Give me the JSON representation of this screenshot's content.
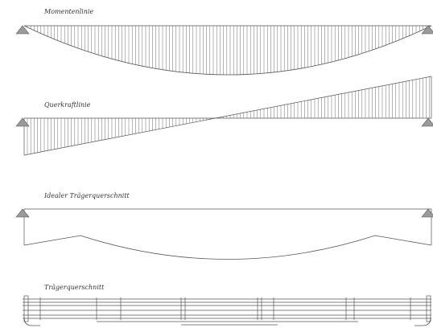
{
  "diagram": {
    "panels": [
      {
        "id": "moment",
        "label": "Momentenlinie"
      },
      {
        "id": "shear",
        "label": "Querkraftlinie"
      },
      {
        "id": "ideal",
        "label": "Idealer Trägerquerschnitt"
      },
      {
        "id": "real",
        "label": "Trägerquerschnitt"
      }
    ]
  },
  "colors": {
    "line": "#555555",
    "hatch": "#6a6a6a",
    "support": "#9a9a9a",
    "label": "#333333"
  }
}
